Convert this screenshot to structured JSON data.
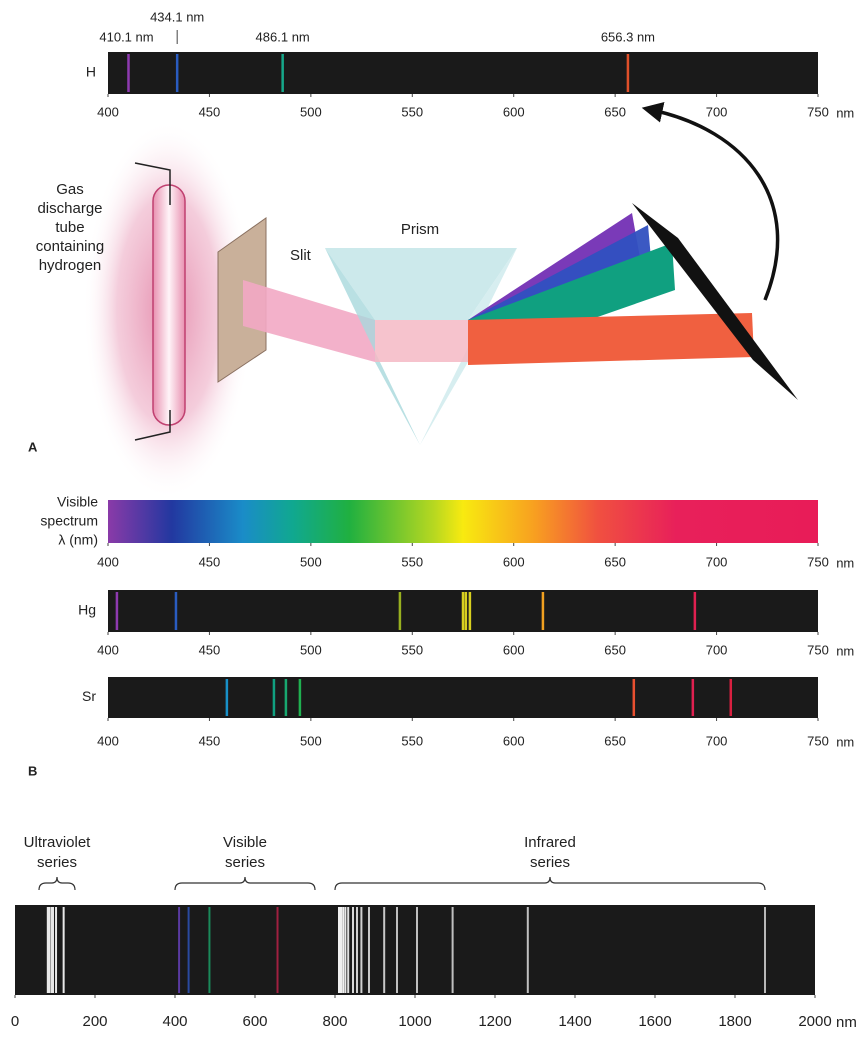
{
  "panel_a": {
    "label": "A",
    "spectrum": {
      "element": "H",
      "xlim": [
        400,
        750
      ],
      "xticks": [
        400,
        450,
        500,
        550,
        600,
        650,
        700,
        750
      ],
      "unit": "nm",
      "lines": [
        {
          "wavelength": 410.1,
          "label": "410.1 nm",
          "color": "#8e3ab0"
        },
        {
          "wavelength": 434.1,
          "label": "434.1 nm",
          "color": "#2a5cc0"
        },
        {
          "wavelength": 486.1,
          "label": "486.1 nm",
          "color": "#16a88a"
        },
        {
          "wavelength": 656.3,
          "label": "656.3 nm",
          "color": "#e0502a"
        }
      ]
    },
    "apparatus": {
      "tube_label": [
        "Gas",
        "discharge",
        "tube",
        "containing",
        "hydrogen"
      ],
      "slit_label": "Slit",
      "prism_label": "Prism"
    }
  },
  "panel_b": {
    "label": "B",
    "visible_spectrum": {
      "label": [
        "Visible",
        "spectrum",
        "λ (nm)"
      ],
      "xlim": [
        400,
        750
      ],
      "xticks": [
        400,
        450,
        500,
        550,
        600,
        650,
        700,
        750
      ],
      "unit": "nm"
    },
    "mercury": {
      "element": "Hg",
      "xlim": [
        400,
        750
      ],
      "xticks": [
        400,
        450,
        500,
        550,
        600,
        650,
        700,
        750
      ],
      "unit": "nm",
      "lines": [
        {
          "wavelength": 404.4,
          "color": "#8e3ab0"
        },
        {
          "wavelength": 433.5,
          "color": "#2a5cc0"
        },
        {
          "wavelength": 543.9,
          "color": "#98b020"
        },
        {
          "wavelength": 575,
          "color": "#d8d020"
        },
        {
          "wavelength": 576.4,
          "color": "#d8d020"
        },
        {
          "wavelength": 578.4,
          "color": "#d8d020"
        },
        {
          "wavelength": 614.4,
          "color": "#f0a020"
        },
        {
          "wavelength": 689.3,
          "color": "#e02050"
        }
      ]
    },
    "strontium": {
      "element": "Sr",
      "xlim": [
        400,
        750
      ],
      "xticks": [
        400,
        450,
        500,
        550,
        600,
        650,
        700,
        750
      ],
      "unit": "nm",
      "lines": [
        {
          "wavelength": 458.6,
          "color": "#1890c8"
        },
        {
          "wavelength": 481.8,
          "color": "#10a080"
        },
        {
          "wavelength": 487.7,
          "color": "#18a870"
        },
        {
          "wavelength": 494.6,
          "color": "#20b050"
        },
        {
          "wavelength": 659.2,
          "color": "#e85030"
        },
        {
          "wavelength": 688.3,
          "color": "#e02050"
        },
        {
          "wavelength": 707,
          "color": "#d82040"
        }
      ]
    }
  },
  "panel_c": {
    "xlim": [
      0,
      2000
    ],
    "xticks": [
      0,
      200,
      400,
      600,
      800,
      1000,
      1200,
      1400,
      1600,
      1800,
      2000
    ],
    "unit": "nm",
    "series": [
      {
        "label": [
          "Ultraviolet",
          "series"
        ],
        "range": [
          60,
          150
        ]
      },
      {
        "label": [
          "Visible",
          "series"
        ],
        "range": [
          400,
          750
        ]
      },
      {
        "label": [
          "Infrared",
          "series"
        ],
        "range": [
          800,
          1875
        ]
      }
    ],
    "lines": [
      {
        "wavelength": 82,
        "color": "#e8e8e8"
      },
      {
        "wavelength": 86,
        "color": "#e8e8e8"
      },
      {
        "wavelength": 91.9,
        "color": "#e8e8e8"
      },
      {
        "wavelength": 95,
        "color": "#e8e8e8"
      },
      {
        "wavelength": 102.6,
        "color": "#e8e8e8"
      },
      {
        "wavelength": 121.6,
        "color": "#e8e8e8"
      },
      {
        "wavelength": 410.2,
        "color": "#5a3aa0"
      },
      {
        "wavelength": 434,
        "color": "#2a4aa0"
      },
      {
        "wavelength": 486.1,
        "color": "#1a8a5a"
      },
      {
        "wavelength": 656.3,
        "color": "#a02040"
      },
      {
        "wavelength": 810,
        "color": "#f0f0f0"
      },
      {
        "wavelength": 815,
        "color": "#f0f0f0"
      },
      {
        "wavelength": 820.4,
        "color": "#f0f0f0"
      },
      {
        "wavelength": 826,
        "color": "#e8e8e8"
      },
      {
        "wavelength": 833,
        "color": "#e0e0e0"
      },
      {
        "wavelength": 845,
        "color": "#d8d8d8"
      },
      {
        "wavelength": 855,
        "color": "#d0d0d0"
      },
      {
        "wavelength": 866,
        "color": "#d0d0d0"
      },
      {
        "wavelength": 885,
        "color": "#c8c8c8"
      },
      {
        "wavelength": 923,
        "color": "#c8c8c8"
      },
      {
        "wavelength": 955,
        "color": "#c0c0c0"
      },
      {
        "wavelength": 1005,
        "color": "#c0c0c0"
      },
      {
        "wavelength": 1094,
        "color": "#c0c0c0"
      },
      {
        "wavelength": 1282,
        "color": "#c0c0c0"
      },
      {
        "wavelength": 1875,
        "color": "#b8b8b8"
      }
    ]
  }
}
